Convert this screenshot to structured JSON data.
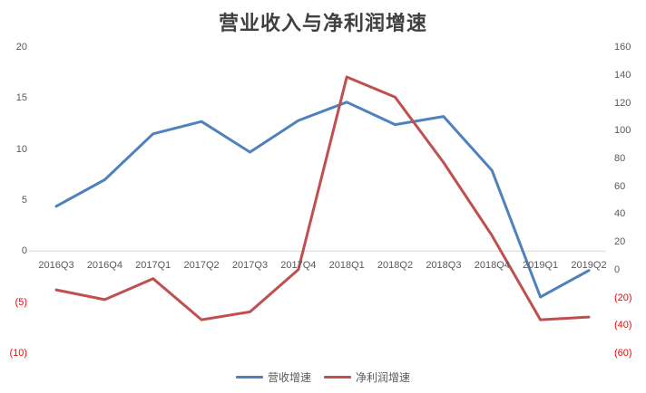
{
  "chart": {
    "title": "营业收入与净利润增速",
    "legend": [
      {
        "name": "营收增速",
        "color": "#4F81BD"
      },
      {
        "name": "净利润增速",
        "color": "#C0504D"
      }
    ],
    "tick_color": "#595959",
    "negative_tick_color": "#FF0000",
    "gridline_color": "#D9D9D9"
  },
  "chart_data": {
    "type": "line",
    "title": "营业收入与净利润增速",
    "categories": [
      "2016Q3",
      "2016Q4",
      "2017Q1",
      "2017Q2",
      "2017Q3",
      "2017Q4",
      "2018Q1",
      "2018Q2",
      "2018Q3",
      "2018Q4",
      "2019Q1",
      "2019Q2"
    ],
    "series": [
      {
        "name": "营收增速",
        "axis": "left",
        "color": "#4F81BD",
        "values": [
          4.4,
          7.0,
          11.5,
          12.7,
          9.7,
          12.8,
          14.6,
          12.4,
          13.2,
          7.9,
          -4.5,
          -1.9
        ]
      },
      {
        "name": "净利润增速",
        "axis": "right",
        "color": "#C0504D",
        "values": [
          -14.5,
          -21.5,
          -6.4,
          -36.0,
          -30.3,
          0.0,
          138.5,
          124.0,
          77.0,
          24.5,
          -36.0,
          -34.0
        ]
      }
    ],
    "left_axis": {
      "label_format": "negatives-in-red-parentheses",
      "ticks": [
        20,
        15,
        10,
        5,
        0,
        -5,
        -10
      ],
      "min": -10,
      "max": 20
    },
    "right_axis": {
      "label_format": "negatives-in-red-parentheses",
      "ticks": [
        160,
        140,
        120,
        100,
        80,
        60,
        40,
        20,
        0,
        -20,
        -40,
        -60
      ],
      "min": -60,
      "max": 160
    },
    "grid": "zero-line-only",
    "legend_position": "bottom"
  }
}
